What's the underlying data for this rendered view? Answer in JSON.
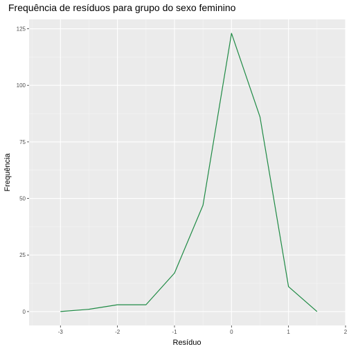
{
  "chart_data": {
    "type": "line",
    "title": "Frequência de resíduos para grupo do sexo feminino",
    "xlabel": "Resíduo",
    "ylabel": "Frequência",
    "xlim": [
      -3.55,
      2.0
    ],
    "ylim": [
      -6.15,
      129.15
    ],
    "x_ticks": [
      -3,
      -2,
      -1,
      0,
      1,
      2
    ],
    "x_tick_labels": [
      "-3",
      "-2",
      "-1",
      "0",
      "1",
      "2"
    ],
    "y_ticks": [
      0,
      25,
      50,
      75,
      100,
      125
    ],
    "y_tick_labels": [
      "0",
      "25",
      "50",
      "75",
      "100",
      "125"
    ],
    "grid": true,
    "series": [
      {
        "color": "#1e8a44",
        "x": [
          -3,
          -2.5,
          -2,
          -1.5,
          -1,
          -0.5,
          0,
          0.5,
          1,
          1.5
        ],
        "y": [
          0,
          1,
          3,
          3,
          17,
          47,
          123,
          86,
          11,
          0
        ]
      }
    ]
  }
}
